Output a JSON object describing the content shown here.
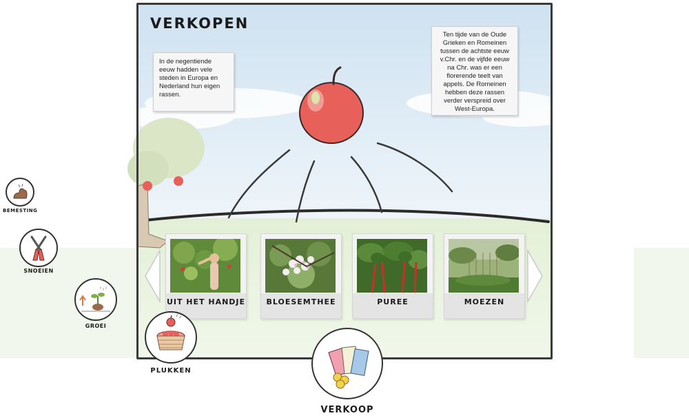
{
  "page": {
    "title": "VERKOPEN"
  },
  "notes": {
    "left": "In de negentiende eeuw hadden vele steden in Europa en Nederland hun eigen rassen.",
    "right": "Ten tijde van de Oude Grieken en Romeinen tussen de achtste eeuw v.Chr. en de vijfde eeuw na Chr. was er een florerende teelt van appels. De Romeinen hebben deze rassen verder verspreid over West-Europa."
  },
  "cards": [
    {
      "label": "UIT HET HANDJE",
      "icon": "picking-photo"
    },
    {
      "label": "BLOESEMTHEE",
      "icon": "blossom-photo"
    },
    {
      "label": "PUREE",
      "icon": "chard-photo"
    },
    {
      "label": "MOEZEN",
      "icon": "garden-photo"
    }
  ],
  "side_nav": {
    "bemesting": "BEMESTING",
    "snoeien": "SNOEIEN",
    "groei": "GROEI",
    "plukken": "PLUKKEN",
    "verkoop": "VERKOOP"
  },
  "colors": {
    "sky": "#dbe9f4",
    "grass": "#e6f1dc",
    "apple": "#e8605a",
    "frame": "#3a3a3a"
  }
}
